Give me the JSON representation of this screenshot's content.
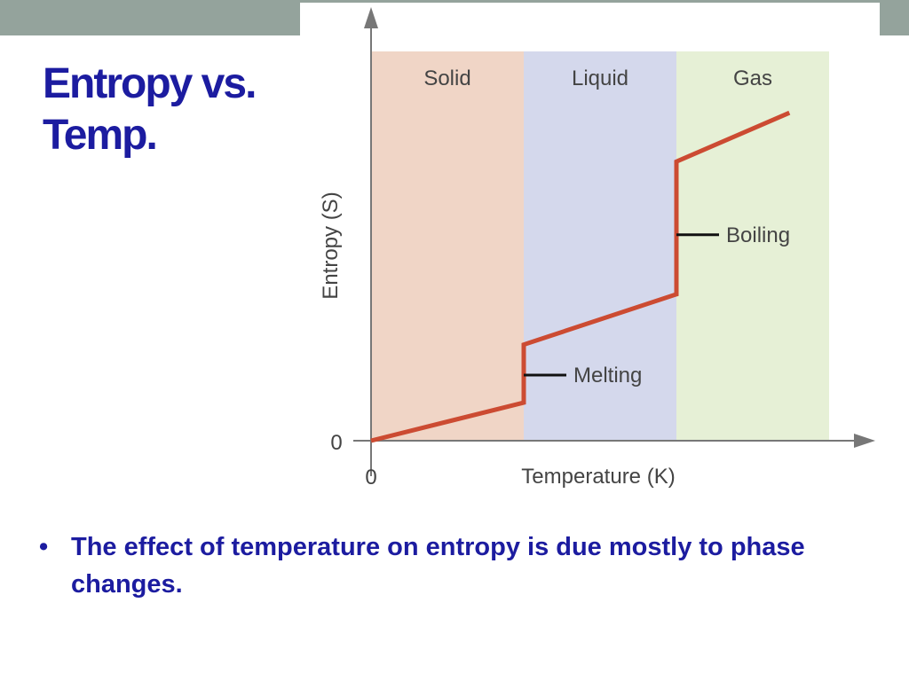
{
  "slide": {
    "title_line1": "Entropy vs.",
    "title_line2": "Temp.",
    "bullet": "The effect of temperature on entropy is due mostly to phase changes.",
    "title_color": "#1c1ca0",
    "header_bar_color": "#94a39c"
  },
  "chart_data": {
    "type": "line",
    "xlabel": "Temperature (K)",
    "ylabel": "Entropy (S)",
    "x_tick_labels": [
      "0"
    ],
    "y_tick_labels": [
      "0"
    ],
    "xlim": [
      0,
      3.2
    ],
    "ylim": [
      0,
      2.55
    ],
    "grid": false,
    "regions": [
      {
        "label": "Solid",
        "x0": 0,
        "x1": 1,
        "color": "#f0d5c6"
      },
      {
        "label": "Liquid",
        "x0": 1,
        "x1": 2,
        "color": "#d4d8ec"
      },
      {
        "label": "Gas",
        "x0": 2,
        "x1": 3,
        "color": "#e6f0d6"
      }
    ],
    "series": [
      {
        "color": "#cc4b32",
        "x": [
          0,
          1,
          1,
          2,
          2,
          2.74
        ],
        "y": [
          0,
          0.25,
          0.63,
          0.96,
          1.83,
          2.15
        ]
      }
    ],
    "annotations": [
      {
        "text": "Melting",
        "x": 1,
        "y": 0.43
      },
      {
        "text": "Boiling",
        "x": 2,
        "y": 1.35
      }
    ]
  }
}
